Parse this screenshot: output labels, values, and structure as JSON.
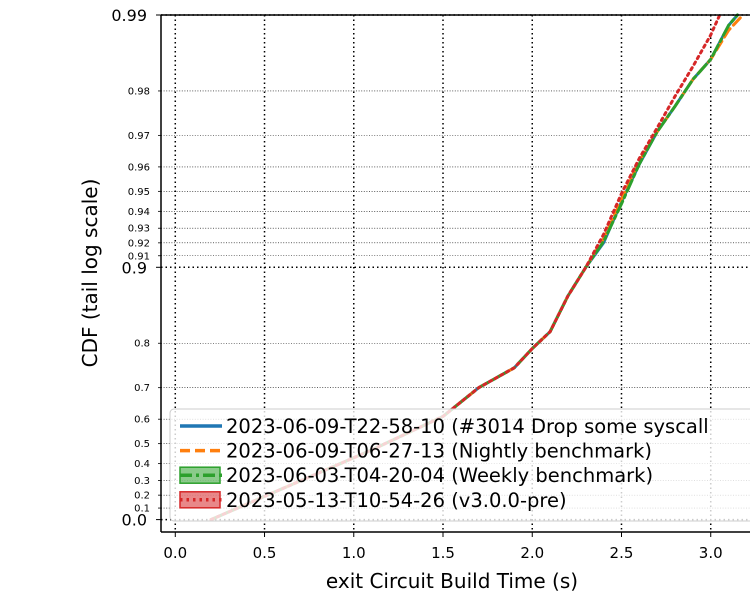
{
  "chart_data": {
    "type": "line",
    "xlabel": "exit Circuit Build Time (s)",
    "ylabel": "CDF (tail log scale)",
    "xlim": [
      -0.08,
      3.22
    ],
    "y_scale": "tail-log",
    "grid": true,
    "x_ticks": [
      "0.0",
      "0.5",
      "1.0",
      "1.5",
      "2.0",
      "2.5",
      "3.0"
    ],
    "y_major_ticks": [
      "0.0",
      "0.9",
      "0.99"
    ],
    "y_minor_ticks": [
      "0.1",
      "0.2",
      "0.3",
      "0.4",
      "0.5",
      "0.6",
      "0.7",
      "0.8",
      "0.91",
      "0.92",
      "0.93",
      "0.94",
      "0.95",
      "0.96",
      "0.97",
      "0.98"
    ],
    "legend_position": "bottom-right",
    "series": [
      {
        "name": "2023-06-09-T22-58-10 (#3014 Drop some syscall",
        "color": "#1f77b4",
        "style": "solid",
        "points": [
          [
            0.2,
            0.0
          ],
          [
            1.1,
            0.47
          ],
          [
            1.5,
            0.61
          ],
          [
            1.7,
            0.7
          ],
          [
            1.9,
            0.75
          ],
          [
            2.0,
            0.79
          ],
          [
            2.1,
            0.82
          ],
          [
            2.2,
            0.87
          ],
          [
            2.3,
            0.9
          ],
          [
            2.4,
            0.92
          ],
          [
            2.5,
            0.945
          ],
          [
            2.6,
            0.961
          ],
          [
            2.7,
            0.971
          ],
          [
            2.8,
            0.977
          ],
          [
            2.9,
            0.982
          ],
          [
            3.0,
            0.985
          ],
          [
            3.1,
            0.989
          ],
          [
            3.15,
            0.99
          ]
        ]
      },
      {
        "name": "2023-06-09-T06-27-13 (Nightly benchmark)",
        "color": "#ff7f0e",
        "style": "dashed",
        "points": [
          [
            0.2,
            0.0
          ],
          [
            1.1,
            0.47
          ],
          [
            1.5,
            0.61
          ],
          [
            1.7,
            0.7
          ],
          [
            1.9,
            0.75
          ],
          [
            2.0,
            0.79
          ],
          [
            2.1,
            0.82
          ],
          [
            2.2,
            0.87
          ],
          [
            2.3,
            0.9
          ],
          [
            2.4,
            0.923
          ],
          [
            2.5,
            0.946
          ],
          [
            2.6,
            0.962
          ],
          [
            2.7,
            0.971
          ],
          [
            2.8,
            0.977
          ],
          [
            2.9,
            0.982
          ],
          [
            3.0,
            0.985
          ],
          [
            3.1,
            0.9885
          ],
          [
            3.18,
            0.99
          ]
        ]
      },
      {
        "name": "2023-06-03-T04-20-04 (Weekly benchmark)",
        "color": "#2ca02c",
        "style": "dashdot",
        "points": [
          [
            0.2,
            0.0
          ],
          [
            1.1,
            0.47
          ],
          [
            1.5,
            0.61
          ],
          [
            1.7,
            0.7
          ],
          [
            1.9,
            0.75
          ],
          [
            2.0,
            0.79
          ],
          [
            2.1,
            0.82
          ],
          [
            2.2,
            0.87
          ],
          [
            2.3,
            0.9
          ],
          [
            2.4,
            0.921
          ],
          [
            2.5,
            0.944
          ],
          [
            2.6,
            0.961
          ],
          [
            2.7,
            0.971
          ],
          [
            2.8,
            0.977
          ],
          [
            2.9,
            0.982
          ],
          [
            3.0,
            0.985
          ],
          [
            3.1,
            0.989
          ],
          [
            3.15,
            0.99
          ]
        ]
      },
      {
        "name": "2023-05-13-T10-54-26 (v3.0.0-pre)",
        "color": "#d62728",
        "style": "dotted",
        "points": [
          [
            0.2,
            0.0
          ],
          [
            1.1,
            0.47
          ],
          [
            1.5,
            0.61
          ],
          [
            1.7,
            0.7
          ],
          [
            1.9,
            0.75
          ],
          [
            2.0,
            0.79
          ],
          [
            2.1,
            0.82
          ],
          [
            2.2,
            0.87
          ],
          [
            2.3,
            0.9
          ],
          [
            2.4,
            0.926
          ],
          [
            2.5,
            0.949
          ],
          [
            2.6,
            0.963
          ],
          [
            2.7,
            0.972
          ],
          [
            2.8,
            0.979
          ],
          [
            2.9,
            0.984
          ],
          [
            3.0,
            0.988
          ],
          [
            3.05,
            0.99
          ]
        ]
      }
    ]
  }
}
